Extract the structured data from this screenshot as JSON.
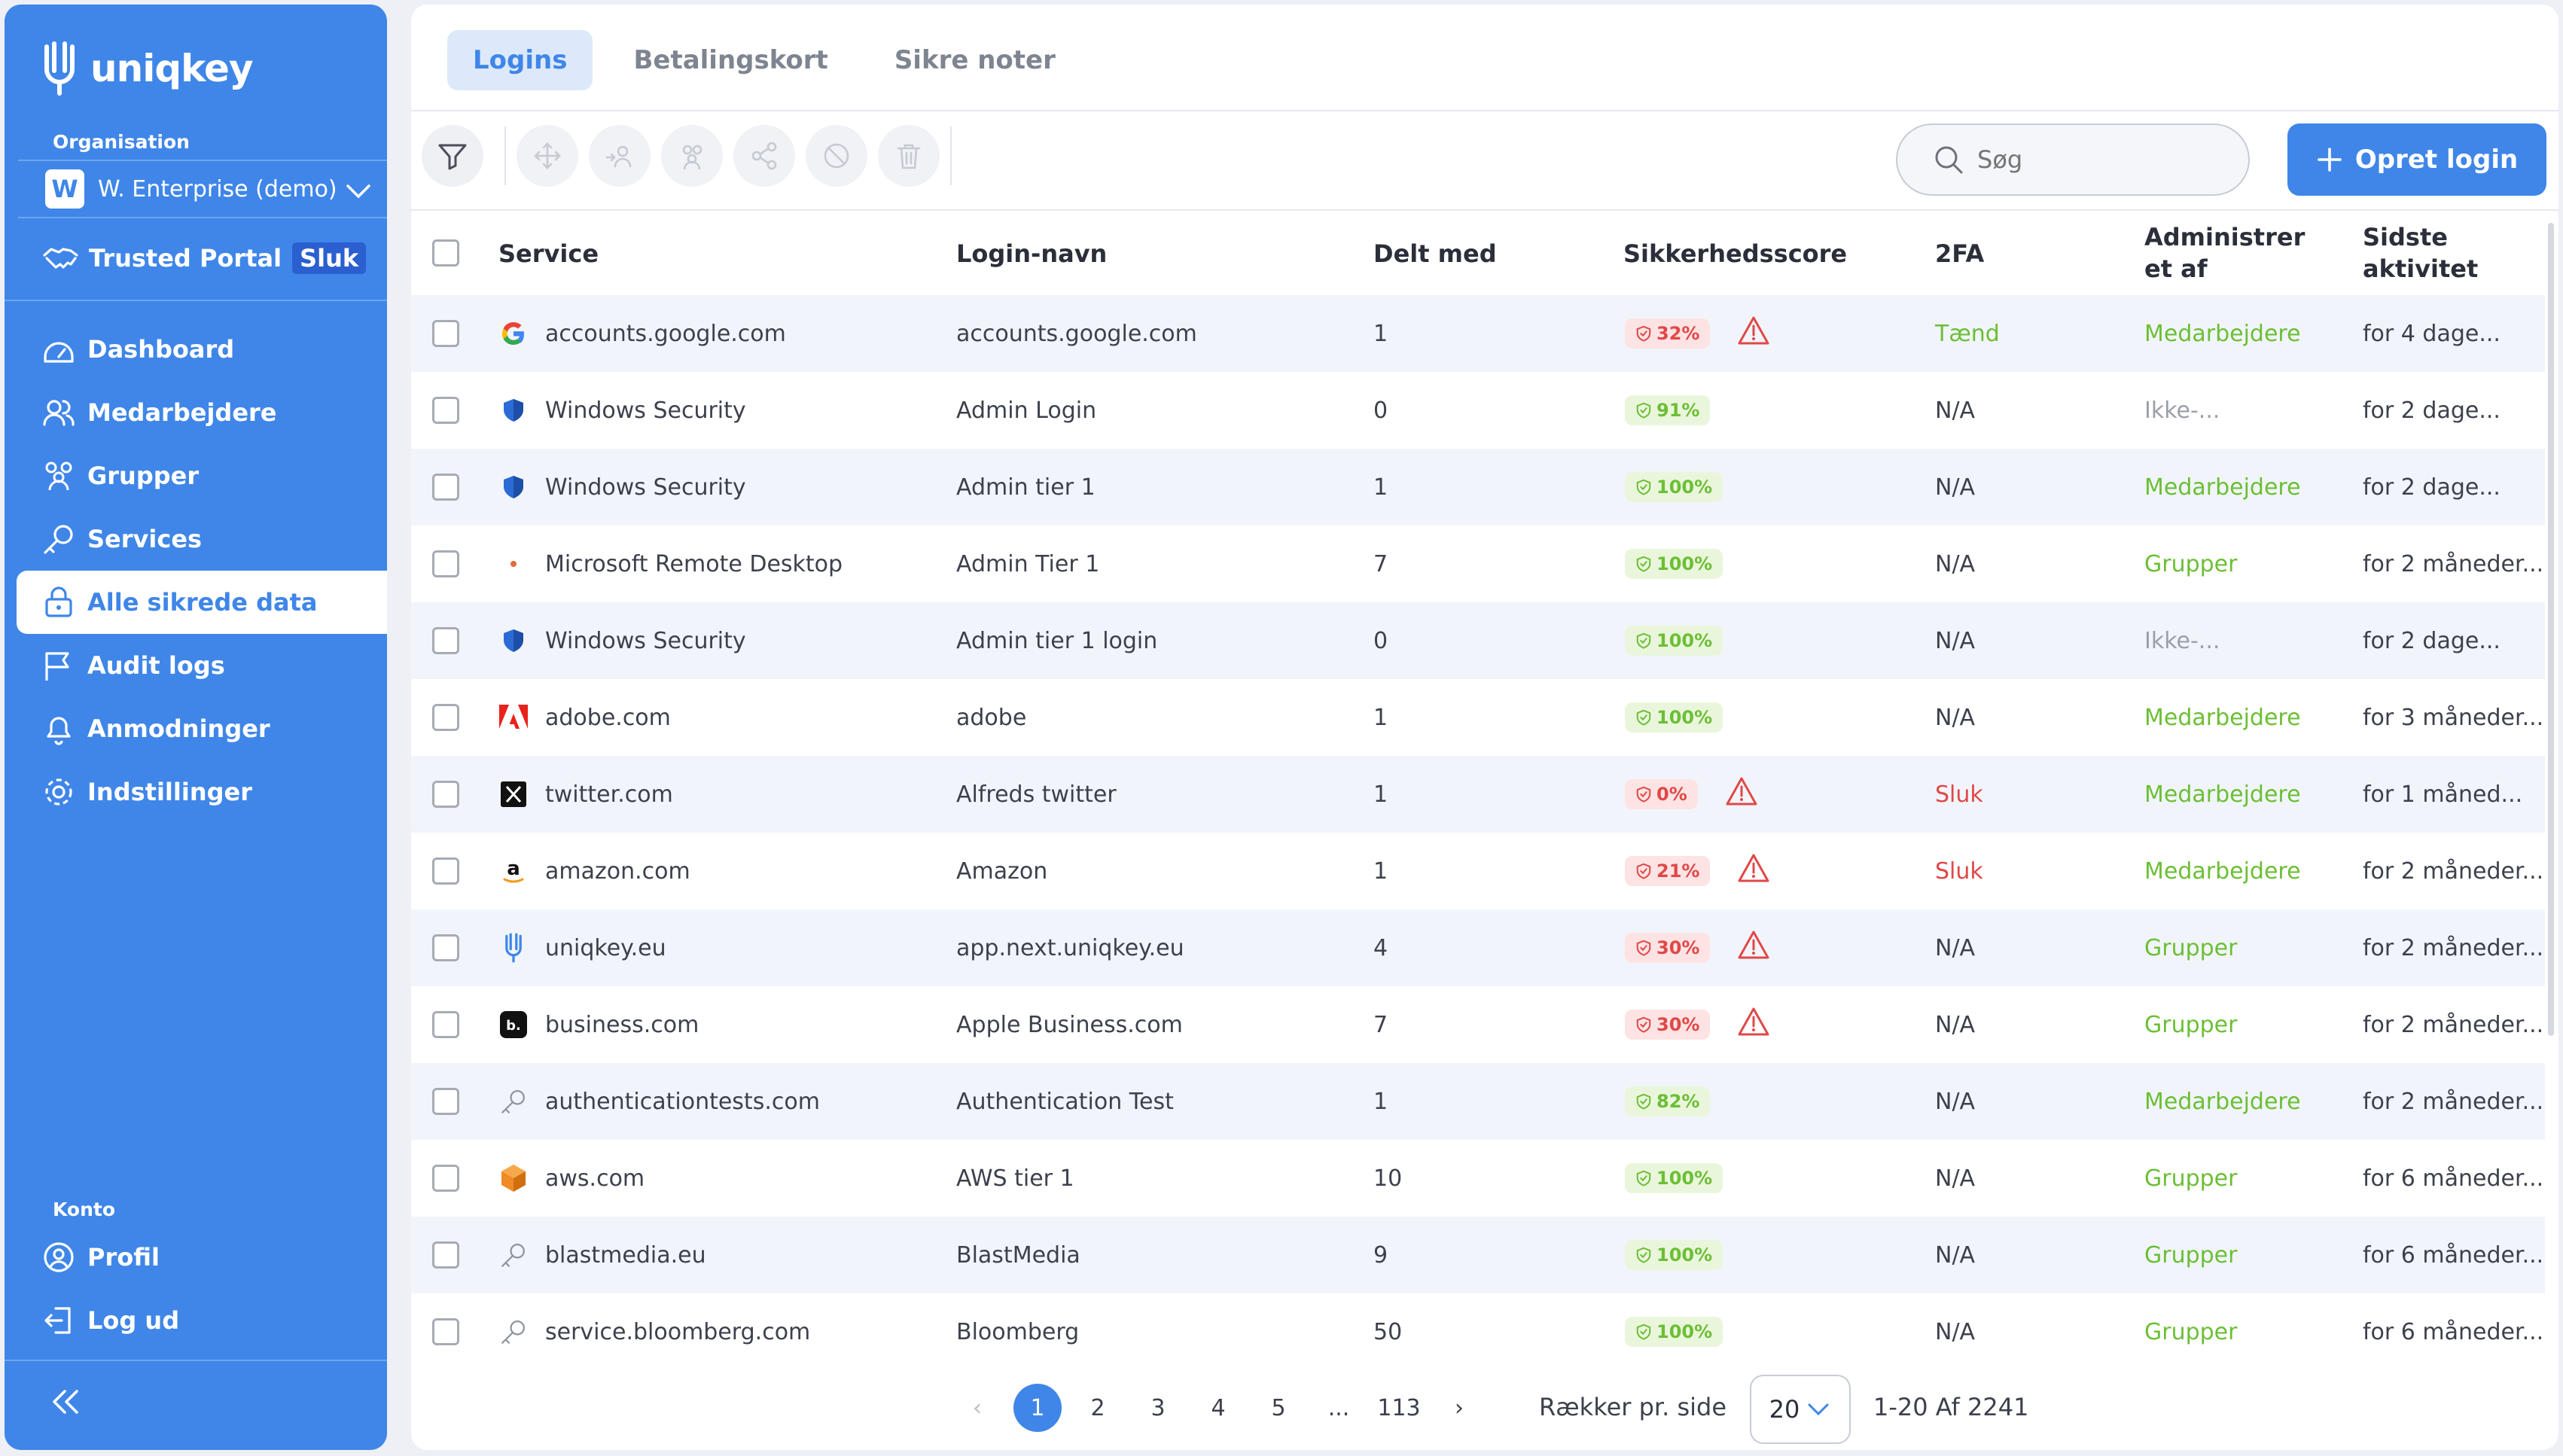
{
  "app": {
    "brand": "uniqkey"
  },
  "sidebar": {
    "org_label": "Organisation",
    "org_badge": "W",
    "org_name": "W. Enterprise (demo)",
    "trusted_portal": "Trusted Portal",
    "trusted_badge": "Sluk",
    "items": [
      {
        "label": "Dashboard",
        "icon": "dashboard-icon"
      },
      {
        "label": "Medarbejdere",
        "icon": "users-icon"
      },
      {
        "label": "Grupper",
        "icon": "groups-icon"
      },
      {
        "label": "Services",
        "icon": "key-icon"
      },
      {
        "label": "Alle sikrede data",
        "icon": "lock-icon",
        "active": true
      },
      {
        "label": "Audit logs",
        "icon": "flag-icon"
      },
      {
        "label": "Anmodninger",
        "icon": "bell-icon"
      },
      {
        "label": "Indstillinger",
        "icon": "gear-icon"
      }
    ],
    "konto_label": "Konto",
    "account": [
      {
        "label": "Profil",
        "icon": "profile-icon"
      },
      {
        "label": "Log ud",
        "icon": "logout-icon"
      }
    ]
  },
  "tabs": [
    "Logins",
    "Betalingskort",
    "Sikre noter"
  ],
  "toolbar": {
    "search_placeholder": "Søg",
    "create_label": "Opret login"
  },
  "table": {
    "headers": {
      "service": "Service",
      "login": "Login-navn",
      "shared": "Delt med",
      "score": "Sikkerhedsscore",
      "twofa": "2FA",
      "admin": "Administrer et af",
      "last": "Sidste aktivitet"
    },
    "rows": [
      {
        "service": "accounts.google.com",
        "icon": "google-icon",
        "login": "accounts.google.com",
        "shared": "1",
        "score": "32%",
        "score_ok": false,
        "warn": true,
        "twofa": "Tænd",
        "twofa_color": "green",
        "admin": "Medarbejdere",
        "admin_color": "green",
        "last": "for 4 dage..."
      },
      {
        "service": "Windows Security",
        "icon": "shield-icon",
        "login": "Admin Login",
        "shared": "0",
        "score": "91%",
        "score_ok": true,
        "warn": false,
        "twofa": "N/A",
        "twofa_color": "dark",
        "admin": "Ikke-...",
        "admin_color": "grey",
        "last": "for 2 dage..."
      },
      {
        "service": "Windows Security",
        "icon": "shield-icon",
        "login": "Admin tier 1",
        "shared": "1",
        "score": "100%",
        "score_ok": true,
        "warn": false,
        "twofa": "N/A",
        "twofa_color": "dark",
        "admin": "Medarbejdere",
        "admin_color": "green",
        "last": "for 2 dage..."
      },
      {
        "service": "Microsoft Remote Desktop",
        "icon": "remote-desktop-icon",
        "login": "Admin Tier 1",
        "shared": "7",
        "score": "100%",
        "score_ok": true,
        "warn": false,
        "twofa": "N/A",
        "twofa_color": "dark",
        "admin": "Grupper",
        "admin_color": "green",
        "last": "for 2 måneder..."
      },
      {
        "service": "Windows Security",
        "icon": "shield-icon",
        "login": "Admin tier 1 login",
        "shared": "0",
        "score": "100%",
        "score_ok": true,
        "warn": false,
        "twofa": "N/A",
        "twofa_color": "dark",
        "admin": "Ikke-...",
        "admin_color": "grey",
        "last": "for 2 dage..."
      },
      {
        "service": "adobe.com",
        "icon": "adobe-icon",
        "login": "adobe",
        "shared": "1",
        "score": "100%",
        "score_ok": true,
        "warn": false,
        "twofa": "N/A",
        "twofa_color": "dark",
        "admin": "Medarbejdere",
        "admin_color": "green",
        "last": "for 3 måneder..."
      },
      {
        "service": "twitter.com",
        "icon": "x-icon",
        "login": "Alfreds twitter",
        "shared": "1",
        "score": "0%",
        "score_ok": false,
        "warn": true,
        "twofa": "Sluk",
        "twofa_color": "red",
        "admin": "Medarbejdere",
        "admin_color": "green",
        "last": "for 1 måned..."
      },
      {
        "service": "amazon.com",
        "icon": "amazon-icon",
        "login": "Amazon",
        "shared": "1",
        "score": "21%",
        "score_ok": false,
        "warn": true,
        "twofa": "Sluk",
        "twofa_color": "red",
        "admin": "Medarbejdere",
        "admin_color": "green",
        "last": "for 2 måneder..."
      },
      {
        "service": "uniqkey.eu",
        "icon": "uniqkey-icon",
        "login": "app.next.uniqkey.eu",
        "shared": "4",
        "score": "30%",
        "score_ok": false,
        "warn": true,
        "twofa": "N/A",
        "twofa_color": "dark",
        "admin": "Grupper",
        "admin_color": "green",
        "last": "for 2 måneder..."
      },
      {
        "service": "business.com",
        "icon": "business-icon",
        "login": "Apple Business.com",
        "shared": "7",
        "score": "30%",
        "score_ok": false,
        "warn": true,
        "twofa": "N/A",
        "twofa_color": "dark",
        "admin": "Grupper",
        "admin_color": "green",
        "last": "for 2 måneder..."
      },
      {
        "service": "authenticationtests.com",
        "icon": "key-icon",
        "login": "Authentication Test",
        "shared": "1",
        "score": "82%",
        "score_ok": true,
        "warn": false,
        "twofa": "N/A",
        "twofa_color": "dark",
        "admin": "Medarbejdere",
        "admin_color": "green",
        "last": "for 2 måneder..."
      },
      {
        "service": "aws.com",
        "icon": "aws-icon",
        "login": "AWS tier 1",
        "shared": "10",
        "score": "100%",
        "score_ok": true,
        "warn": false,
        "twofa": "N/A",
        "twofa_color": "dark",
        "admin": "Grupper",
        "admin_color": "green",
        "last": "for 6 måneder..."
      },
      {
        "service": "blastmedia.eu",
        "icon": "key-icon",
        "login": "BlastMedia",
        "shared": "9",
        "score": "100%",
        "score_ok": true,
        "warn": false,
        "twofa": "N/A",
        "twofa_color": "dark",
        "admin": "Grupper",
        "admin_color": "green",
        "last": "for 6 måneder..."
      },
      {
        "service": "service.bloomberg.com",
        "icon": "key-icon",
        "login": "Bloomberg",
        "shared": "50",
        "score": "100%",
        "score_ok": true,
        "warn": false,
        "twofa": "N/A",
        "twofa_color": "dark",
        "admin": "Grupper",
        "admin_color": "green",
        "last": "for 6 måneder..."
      }
    ]
  },
  "pagination": {
    "prev": "‹",
    "pages": [
      "1",
      "2",
      "3",
      "4",
      "5",
      "...",
      "113"
    ],
    "active": "1",
    "next": "›",
    "rows_label": "Rækker pr. side",
    "rows_value": "20",
    "range": "1-20 Af 2241"
  },
  "colors": {
    "accent": "#3f86e8",
    "good": "#6cbf35",
    "bad": "#e04848"
  }
}
